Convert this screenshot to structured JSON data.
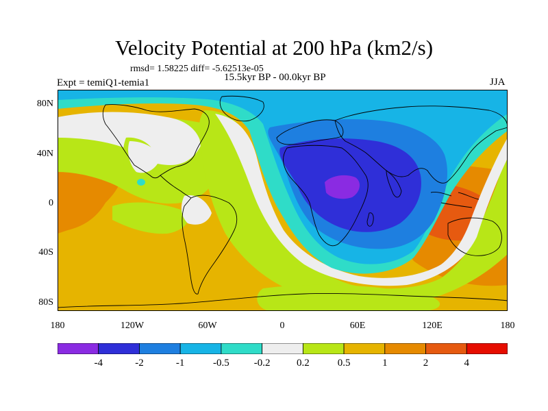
{
  "title": "Velocity Potential at 200 hPa (km2/s)",
  "stats": "rmsd= 1.58225 diff= -5.62513e-05",
  "experiment": "Expt = temiQ1-temia1",
  "period": "15.5kyr BP - 00.0kyr BP",
  "season": "JJA",
  "y_labels": [
    "80N",
    "40N",
    "0",
    "40S",
    "80S"
  ],
  "x_labels": [
    "180",
    "120W",
    "60W",
    "0",
    "60E",
    "120E",
    "180"
  ],
  "colorbar": {
    "colors": [
      "#8a2be2",
      "#2f2fd8",
      "#1e7fe0",
      "#17b4e6",
      "#2fdcc8",
      "#eeeeee",
      "#b8e617",
      "#e6b400",
      "#e68a00",
      "#e65a10",
      "#e60d00"
    ],
    "labels": [
      "-4",
      "-2",
      "-1",
      "-0.5",
      "-0.2",
      "0.2",
      "0.5",
      "1",
      "2",
      "4"
    ]
  }
}
